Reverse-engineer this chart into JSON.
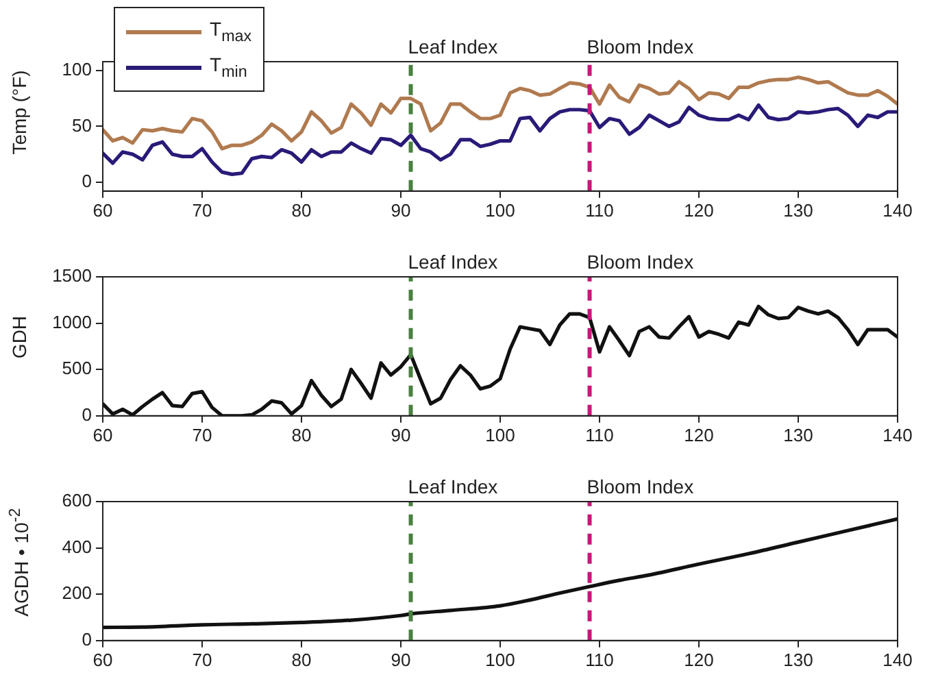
{
  "chart_data": [
    {
      "type": "line",
      "ylabel": "Temp (°F)",
      "xlim": [
        60,
        140
      ],
      "xticks": [
        60,
        70,
        80,
        90,
        100,
        110,
        120,
        130,
        140
      ],
      "ylim": [
        -8,
        108
      ],
      "yticks": [
        0,
        50,
        100
      ],
      "legend": "top left",
      "grid": false,
      "marker": "none",
      "line_style": "solid",
      "x": [
        60,
        61,
        62,
        63,
        64,
        65,
        66,
        67,
        68,
        69,
        70,
        71,
        72,
        73,
        74,
        75,
        76,
        77,
        78,
        79,
        80,
        81,
        82,
        83,
        84,
        85,
        86,
        87,
        88,
        89,
        90,
        91,
        92,
        93,
        94,
        95,
        96,
        97,
        98,
        99,
        100,
        101,
        102,
        103,
        104,
        105,
        106,
        107,
        108,
        109,
        110,
        111,
        112,
        113,
        114,
        115,
        116,
        117,
        118,
        119,
        120,
        121,
        122,
        123,
        124,
        125,
        126,
        127,
        128,
        129,
        130,
        131,
        132,
        133,
        134,
        135,
        136,
        137,
        138,
        139,
        140
      ],
      "series": [
        {
          "name": "T$_{max}$",
          "color": "#b07a4f",
          "values": [
            47,
            37,
            40,
            35,
            47,
            46,
            48,
            46,
            45,
            57,
            55,
            45,
            30,
            33,
            33,
            36,
            42,
            52,
            46,
            37,
            45,
            63,
            55,
            44,
            49,
            70,
            62,
            51,
            70,
            62,
            75,
            75,
            70,
            46,
            53,
            70,
            70,
            63,
            57,
            57,
            60,
            80,
            84,
            82,
            78,
            79,
            84,
            89,
            88,
            85,
            70,
            87,
            76,
            72,
            87,
            84,
            79,
            80,
            90,
            84,
            74,
            80,
            79,
            75,
            85,
            85,
            89,
            91,
            92,
            92,
            94,
            92,
            89,
            90,
            85,
            80,
            78,
            78,
            82,
            77,
            70
          ]
        },
        {
          "name": "T$_{min}$",
          "color": "#2a1a78",
          "values": [
            26,
            17,
            27,
            25,
            20,
            33,
            36,
            25,
            23,
            23,
            30,
            18,
            9,
            7,
            8,
            21,
            23,
            22,
            29,
            26,
            18,
            29,
            23,
            27,
            27,
            35,
            30,
            26,
            39,
            38,
            33,
            42,
            30,
            27,
            20,
            25,
            38,
            38,
            32,
            34,
            37,
            37,
            57,
            58,
            46,
            57,
            63,
            65,
            65,
            64,
            49,
            57,
            55,
            43,
            49,
            60,
            55,
            50,
            54,
            67,
            60,
            57,
            56,
            56,
            60,
            56,
            69,
            58,
            56,
            57,
            63,
            62,
            63,
            65,
            66,
            60,
            50,
            60,
            58,
            63,
            63
          ]
        }
      ],
      "ref_lines": [
        {
          "axis": "x",
          "value": 91,
          "label": "Leaf Index",
          "color": "#4a8040",
          "line_style": "dashed"
        },
        {
          "axis": "x",
          "value": 109,
          "label": "Bloom Index",
          "color": "#c8177a",
          "line_style": "dashed"
        }
      ]
    },
    {
      "type": "line",
      "ylabel": "GDH",
      "xlim": [
        60,
        140
      ],
      "xticks": [
        60,
        70,
        80,
        90,
        100,
        110,
        120,
        130,
        140
      ],
      "ylim": [
        0,
        1500
      ],
      "yticks": [
        0,
        500,
        1000,
        1500
      ],
      "grid": false,
      "marker": "none",
      "line_style": "solid",
      "x": [
        60,
        61,
        62,
        63,
        64,
        65,
        66,
        67,
        68,
        69,
        70,
        71,
        72,
        73,
        74,
        75,
        76,
        77,
        78,
        79,
        80,
        81,
        82,
        83,
        84,
        85,
        86,
        87,
        88,
        89,
        90,
        91,
        92,
        93,
        94,
        95,
        96,
        97,
        98,
        99,
        100,
        101,
        102,
        103,
        104,
        105,
        106,
        107,
        108,
        109,
        110,
        111,
        112,
        113,
        114,
        115,
        116,
        117,
        118,
        119,
        120,
        121,
        122,
        123,
        124,
        125,
        126,
        127,
        128,
        129,
        130,
        131,
        132,
        133,
        134,
        135,
        136,
        137,
        138,
        139,
        140
      ],
      "series": [
        {
          "color": "#111111",
          "values": [
            130,
            20,
            70,
            10,
            100,
            180,
            250,
            110,
            100,
            240,
            260,
            90,
            0,
            0,
            0,
            10,
            70,
            160,
            140,
            20,
            110,
            380,
            220,
            100,
            180,
            500,
            350,
            190,
            570,
            440,
            530,
            660,
            390,
            130,
            190,
            390,
            540,
            440,
            290,
            320,
            400,
            720,
            960,
            940,
            920,
            770,
            980,
            1100,
            1100,
            1060,
            690,
            960,
            810,
            650,
            910,
            960,
            850,
            840,
            960,
            1070,
            850,
            910,
            880,
            840,
            1010,
            980,
            1180,
            1090,
            1050,
            1060,
            1170,
            1130,
            1100,
            1130,
            1060,
            930,
            770,
            930,
            930,
            930,
            850
          ]
        }
      ],
      "ref_lines": [
        {
          "axis": "x",
          "value": 91,
          "label": "Leaf Index",
          "color": "#4a8040",
          "line_style": "dashed"
        },
        {
          "axis": "x",
          "value": 109,
          "label": "Bloom Index",
          "color": "#c8177a",
          "line_style": "dashed"
        }
      ]
    },
    {
      "type": "line",
      "ylabel": "AGDH • 10$^{-2}$",
      "xlim": [
        60,
        140
      ],
      "xticks": [
        60,
        70,
        80,
        90,
        100,
        110,
        120,
        130,
        140
      ],
      "ylim": [
        0,
        600
      ],
      "yticks": [
        0,
        200,
        400,
        600
      ],
      "grid": false,
      "marker": "none",
      "line_style": "solid",
      "x": [
        60,
        64,
        70,
        75,
        80,
        85,
        90,
        91,
        95,
        100,
        103,
        106,
        109,
        112,
        115,
        120,
        125,
        130,
        135,
        140
      ],
      "series": [
        {
          "color": "#111111",
          "values": [
            57,
            58,
            68,
            72,
            78,
            88,
            108,
            115,
            130,
            150,
            175,
            205,
            233,
            260,
            283,
            330,
            375,
            425,
            475,
            525
          ]
        }
      ],
      "ref_lines": [
        {
          "axis": "x",
          "value": 91,
          "label": "Leaf Index",
          "color": "#4a8040",
          "line_style": "dashed"
        },
        {
          "axis": "x",
          "value": 109,
          "label": "Bloom Index",
          "color": "#c8177a",
          "line_style": "dashed"
        }
      ]
    }
  ]
}
